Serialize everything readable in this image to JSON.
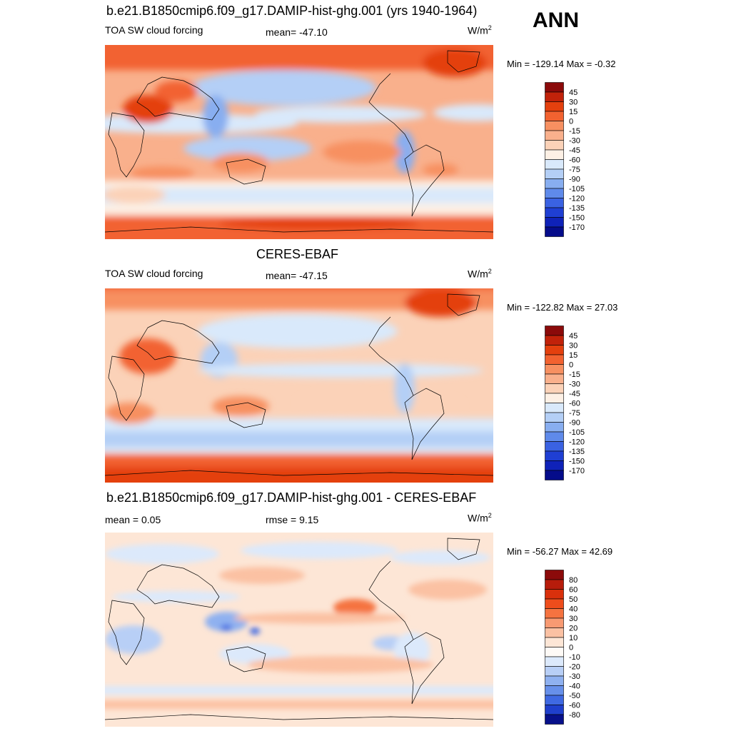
{
  "season": "ANN",
  "panels": [
    {
      "title": "b.e21.B1850cmip6.f09_g17.DAMIP-hist-ghg.001 (yrs 1940-1964)",
      "left_label": "TOA SW cloud forcing",
      "center_label": "mean= -47.10",
      "units": "W/m",
      "units_sup": "2",
      "minmax": "Min = -129.14 Max =  -0.32",
      "colorbar": {
        "labels": [
          "45",
          "30",
          "15",
          "0",
          "-15",
          "-30",
          "-45",
          "-60",
          "-75",
          "-90",
          "-105",
          "-120",
          "-135",
          "-150",
          "-170"
        ],
        "colors": [
          "#8b0a0a",
          "#c1220a",
          "#e4400e",
          "#f26230",
          "#f79061",
          "#f9b08c",
          "#fbd2b8",
          "#fdf0e5",
          "#d9e9fb",
          "#b4cff6",
          "#88aef0",
          "#5f8aea",
          "#3a62e2",
          "#1f3fd3",
          "#0f22b8",
          "#050c8a"
        ]
      }
    },
    {
      "title": "CERES-EBAF",
      "left_label": "TOA SW cloud forcing",
      "center_label": "mean= -47.15",
      "units": "W/m",
      "units_sup": "2",
      "minmax": "Min = -122.82 Max =  27.03",
      "colorbar": {
        "labels": [
          "45",
          "30",
          "15",
          "0",
          "-15",
          "-30",
          "-45",
          "-60",
          "-75",
          "-90",
          "-105",
          "-120",
          "-135",
          "-150",
          "-170"
        ],
        "colors": [
          "#8b0a0a",
          "#c1220a",
          "#e4400e",
          "#f26230",
          "#f79061",
          "#f9b08c",
          "#fbd2b8",
          "#fdf0e5",
          "#d9e9fb",
          "#b4cff6",
          "#88aef0",
          "#5f8aea",
          "#3a62e2",
          "#1f3fd3",
          "#0f22b8",
          "#050c8a"
        ]
      }
    },
    {
      "title": "b.e21.B1850cmip6.f09_g17.DAMIP-hist-ghg.001 - CERES-EBAF",
      "left_label": "mean =   0.05",
      "center_label": "rmse =   9.15",
      "units": "W/m",
      "units_sup": "2",
      "minmax": "Min = -56.27 Max =  42.69",
      "colorbar": {
        "labels": [
          "80",
          "60",
          "50",
          "40",
          "30",
          "20",
          "10",
          "0",
          "-10",
          "-20",
          "-30",
          "-40",
          "-50",
          "-60",
          "-80"
        ],
        "colors": [
          "#8b0a0a",
          "#b71c0b",
          "#d9300c",
          "#ee4d1c",
          "#f57340",
          "#f89a72",
          "#fbc1a3",
          "#fde6d6",
          "#fefaf6",
          "#dce9fb",
          "#b8cff6",
          "#8fb1f0",
          "#6790ea",
          "#3f69e2",
          "#1f3fcc",
          "#07108a"
        ]
      }
    }
  ]
}
